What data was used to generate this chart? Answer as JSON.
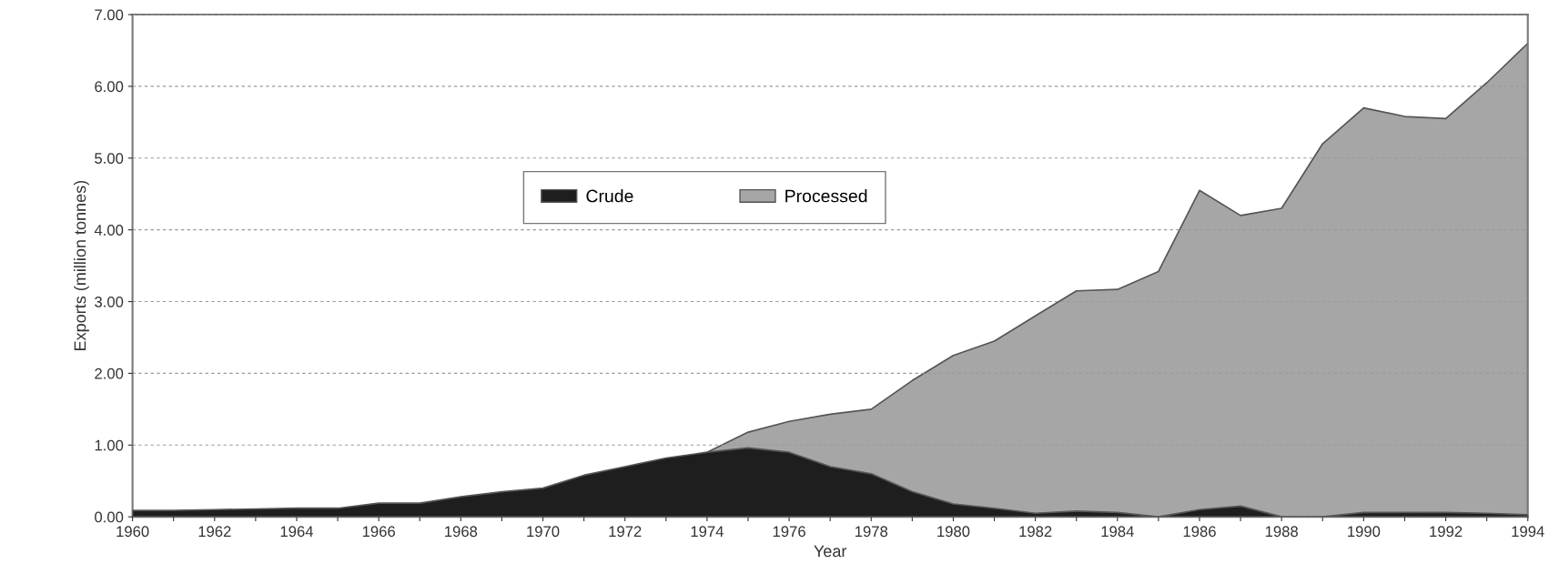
{
  "chart_data": {
    "type": "area",
    "xlabel": "Year",
    "ylabel": "Exports (million tonnes)",
    "xlim": [
      1960,
      1994
    ],
    "ylim": [
      0,
      7
    ],
    "xticks": [
      1960,
      {
        "value": 1961,
        "label": null
      },
      1962,
      {
        "value": 1963,
        "label": null
      },
      1964,
      {
        "value": 1965,
        "label": null
      },
      1966,
      {
        "value": 1967,
        "label": null
      },
      1968,
      {
        "value": 1969,
        "label": null
      },
      1970,
      {
        "value": 1971,
        "label": null
      },
      1972,
      {
        "value": 1973,
        "label": null
      },
      1974,
      {
        "value": 1975,
        "label": null
      },
      1976,
      {
        "value": 1977,
        "label": null
      },
      1978,
      {
        "value": 1979,
        "label": null
      },
      1980,
      {
        "value": 1981,
        "label": null
      },
      1982,
      {
        "value": 1983,
        "label": null
      },
      1984,
      {
        "value": 1985,
        "label": null
      },
      1986,
      {
        "value": 1987,
        "label": null
      },
      1988,
      {
        "value": 1989,
        "label": null
      },
      1990,
      {
        "value": 1991,
        "label": null
      },
      1992,
      {
        "value": 1993,
        "label": null
      },
      1994
    ],
    "yticks": [
      {
        "value": 0,
        "label": "0.00"
      },
      {
        "value": 1,
        "label": "1.00"
      },
      {
        "value": 2,
        "label": "2.00"
      },
      {
        "value": 3,
        "label": "3.00"
      },
      {
        "value": 4,
        "label": "4.00"
      },
      {
        "value": 5,
        "label": "5.00"
      },
      {
        "value": 6,
        "label": "6.00"
      },
      {
        "value": 7,
        "label": "7.00"
      }
    ],
    "grid": "y",
    "legend": "top",
    "series": [
      {
        "name": "Processed",
        "color": "#a6a6a6",
        "x": [
          1974,
          1975,
          1976,
          1977,
          1978,
          1979,
          1980,
          1981,
          1982,
          1983,
          1984,
          1985,
          1986,
          1987,
          1988,
          1989,
          1990,
          1991,
          1992,
          1993,
          1994
        ],
        "values": [
          0.9,
          1.18,
          1.33,
          1.43,
          1.5,
          1.9,
          2.25,
          2.45,
          2.8,
          3.15,
          3.17,
          3.42,
          4.55,
          4.2,
          4.3,
          5.2,
          5.7,
          5.58,
          5.55,
          6.05,
          6.6
        ]
      },
      {
        "name": "Crude",
        "color": "#1e1e1e",
        "x": [
          1960,
          1961,
          1962,
          1963,
          1964,
          1965,
          1966,
          1967,
          1968,
          1969,
          1970,
          1971,
          1972,
          1973,
          1974,
          1975,
          1976,
          1977,
          1978,
          1979,
          1980,
          1981,
          1982,
          1983,
          1984,
          1985,
          1986,
          1987,
          1988,
          1989,
          1990,
          1991,
          1992,
          1993,
          1994
        ],
        "values": [
          0.09,
          0.09,
          0.1,
          0.11,
          0.12,
          0.12,
          0.19,
          0.19,
          0.28,
          0.35,
          0.4,
          0.58,
          0.7,
          0.82,
          0.9,
          0.96,
          0.9,
          0.7,
          0.6,
          0.35,
          0.18,
          0.12,
          0.05,
          0.08,
          0.06,
          0.0,
          0.1,
          0.15,
          0.0,
          0.0,
          0.06,
          0.06,
          0.06,
          0.05,
          0.03
        ]
      }
    ]
  }
}
